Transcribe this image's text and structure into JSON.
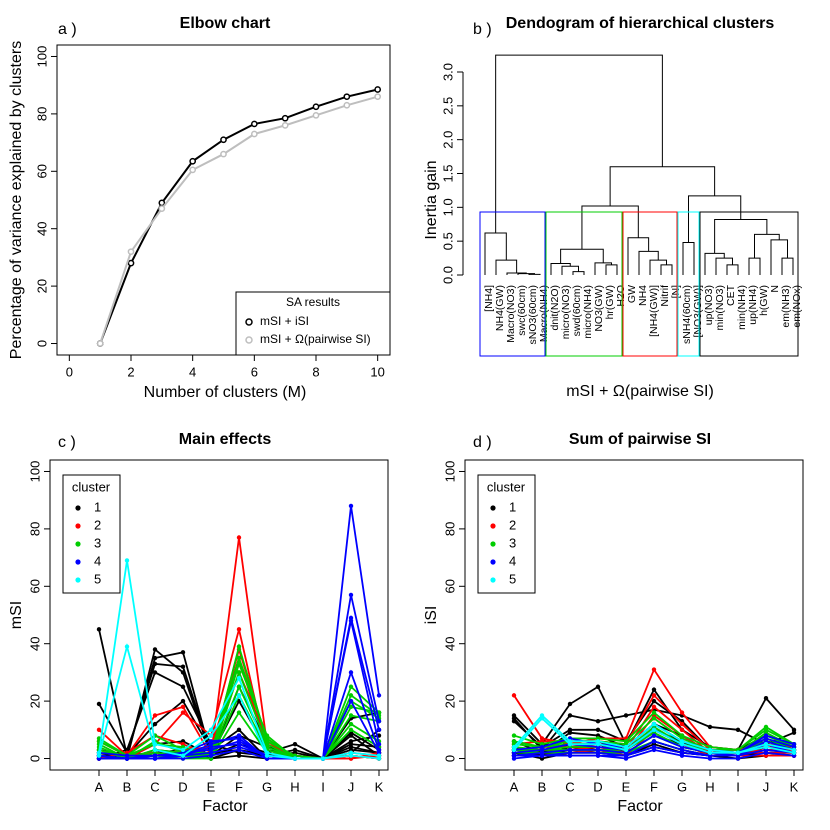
{
  "chart_data": [
    {
      "type": "line",
      "panel_label": "a )",
      "title": "Elbow chart",
      "x_label": "Number of clusters (M)",
      "y_label": "Percentage of variance explained by clusters",
      "x": [
        1,
        2,
        3,
        4,
        5,
        6,
        7,
        8,
        9,
        10
      ],
      "series": [
        {
          "name": "mSI + iSI",
          "color": "#000000",
          "values": [
            0,
            28,
            49,
            63.5,
            71,
            76.5,
            78.5,
            82.5,
            86,
            88.5
          ]
        },
        {
          "name": "mSI + Ω(pairwise SI)",
          "color": "#bebebe",
          "values": [
            0,
            32,
            47,
            60.5,
            66,
            73,
            76,
            79.5,
            83,
            86
          ]
        }
      ],
      "legend_title": "SA results",
      "legend_position": "bottom-right",
      "xlim": [
        -0.4,
        10.4
      ],
      "xticks": [
        0,
        2,
        4,
        6,
        8,
        10
      ],
      "ylim": [
        -4,
        104
      ],
      "yticks": [
        0,
        20,
        40,
        60,
        80,
        100
      ]
    },
    {
      "type": "dendrogram",
      "panel_label": "b )",
      "title": "Dendogram of hierarchical clusters",
      "x_label": "mSI + Ω(pairwise SI)",
      "y_label": "Inertia gain",
      "leaves": [
        "[NH4]",
        "NH4(GW)",
        "Macro(NO3)",
        "swc(60cm)",
        "sNO3(60cm)",
        "Macro(NH4)",
        "dnit(N2O)",
        "micro(NO3)",
        "swd(60cm)",
        "micro(NH4)",
        "NO3(GW)",
        "hr(GW)",
        "H2O",
        "GW",
        "NH4",
        "[NH4(GW)]",
        "Nitrif",
        "[N]",
        "sNH4(60cm)",
        "[NO3(GW)]",
        "up(NO3)",
        "min(NO3)",
        "CET",
        "min(NH4)",
        "up(NH4)",
        "h(GW)",
        "N",
        "em(NH3)",
        "em(NOx)"
      ],
      "merge": [
        [
          -5,
          -6
        ],
        [
          -4,
          1
        ],
        [
          -3,
          2
        ],
        [
          -2,
          3
        ],
        [
          -1,
          4
        ],
        [
          -9,
          -10
        ],
        [
          -8,
          6
        ],
        [
          -7,
          7
        ],
        [
          -12,
          -13
        ],
        [
          -11,
          9
        ],
        [
          8,
          10
        ],
        [
          -17,
          -18
        ],
        [
          -16,
          12
        ],
        [
          -15,
          13
        ],
        [
          -14,
          14
        ],
        [
          -19,
          -20
        ],
        [
          -23,
          -24
        ],
        [
          -22,
          17
        ],
        [
          -21,
          18
        ],
        [
          -25,
          -26
        ],
        [
          -28,
          -29
        ],
        [
          -27,
          21
        ],
        [
          20,
          22
        ],
        [
          19,
          23
        ],
        [
          16,
          24
        ],
        [
          11,
          15
        ],
        [
          26,
          25
        ],
        [
          5,
          27
        ]
      ],
      "height": [
        0.01,
        0.02,
        0.03,
        0.22,
        0.62,
        0.05,
        0.13,
        0.17,
        0.15,
        0.18,
        0.38,
        0.15,
        0.22,
        0.35,
        0.55,
        0.48,
        0.15,
        0.25,
        0.32,
        0.25,
        0.25,
        0.52,
        0.6,
        0.82,
        1.17,
        1.02,
        1.6,
        3.25
      ],
      "cluster_boxes": [
        {
          "color": "#0000ff",
          "first_leaf": 1,
          "last_leaf": 6
        },
        {
          "color": "#00cd00",
          "first_leaf": 7,
          "last_leaf": 13
        },
        {
          "color": "#ff0000",
          "first_leaf": 14,
          "last_leaf": 18
        },
        {
          "color": "#00ffff",
          "first_leaf": 19,
          "last_leaf": 20
        },
        {
          "color": "#000000",
          "first_leaf": 21,
          "last_leaf": 29
        }
      ],
      "ylim": [
        0,
        3
      ],
      "yticks": [
        {
          "value": 0,
          "label": "0.0"
        },
        {
          "value": 0.5,
          "label": "0.5"
        },
        {
          "value": 1,
          "label": "1.0"
        },
        {
          "value": 1.5,
          "label": "1.5"
        },
        {
          "value": 2,
          "label": "2.0"
        },
        {
          "value": 2.5,
          "label": "2.5"
        },
        {
          "value": 3,
          "label": "3.0"
        }
      ]
    },
    {
      "type": "multiline",
      "panel_label": "c )",
      "title": "Main effects",
      "x_label": "Factor",
      "y_label": "mSI",
      "categories": [
        "A",
        "B",
        "C",
        "D",
        "E",
        "F",
        "G",
        "H",
        "I",
        "J",
        "K"
      ],
      "legend_title": "cluster",
      "legend_position": "top-left",
      "ylim": [
        -4,
        104
      ],
      "yticks": [
        0,
        20,
        40,
        60,
        80,
        100
      ],
      "series": [
        {
          "name": "1",
          "color": "#000000",
          "lines": [
            [
              45,
              1,
              35,
              37,
              1,
              5,
              2,
              5,
              0,
              9,
              3
            ],
            [
              19,
              2,
              33,
              32,
              2,
              3,
              1,
              2,
              0,
              6,
              8
            ],
            [
              2,
              0,
              38,
              30,
              1,
              8,
              4,
              1,
              0,
              14,
              16
            ],
            [
              0,
              3,
              30,
              25,
              5,
              2,
              1,
              3,
              0,
              5,
              4
            ],
            [
              1,
              1,
              12,
              20,
              3,
              10,
              0,
              0,
              0,
              3,
              2
            ],
            [
              0,
              0,
              5,
              6,
              1,
              20,
              3,
              1,
              0,
              2,
              10
            ],
            [
              3,
              1,
              2,
              3,
              0,
              25,
              5,
              0,
              0,
              8,
              1
            ],
            [
              0,
              2,
              1,
              1,
              0,
              3,
              1,
              0,
              0,
              1,
              0
            ],
            [
              1,
              0,
              3,
              2,
              0,
              1,
              0,
              0,
              0,
              4,
              2
            ]
          ]
        },
        {
          "name": "2",
          "color": "#ff0000",
          "lines": [
            [
              10,
              1,
              15,
              18,
              1,
              77,
              5,
              1,
              0,
              1,
              0
            ],
            [
              3,
              0,
              5,
              16,
              8,
              45,
              2,
              0,
              0,
              0,
              2
            ],
            [
              6,
              1,
              2,
              1,
              2,
              38,
              6,
              0,
              0,
              1,
              0
            ],
            [
              1,
              0,
              1,
              3,
              4,
              35,
              3,
              0,
              0,
              2,
              1
            ],
            [
              0,
              2,
              8,
              5,
              1,
              30,
              7,
              0,
              0,
              0,
              1
            ]
          ]
        },
        {
          "name": "3",
          "color": "#00cd00",
          "lines": [
            [
              7,
              1,
              8,
              3,
              1,
              39,
              6,
              1,
              0,
              25,
              16
            ],
            [
              5,
              0,
              6,
              2,
              2,
              35,
              7,
              0,
              0,
              22,
              15
            ],
            [
              6,
              1,
              5,
              4,
              1,
              33,
              8,
              0,
              0,
              20,
              14
            ],
            [
              4,
              0,
              3,
              2,
              1,
              30,
              5,
              0,
              0,
              18,
              16
            ],
            [
              3,
              0,
              2,
              1,
              1,
              25,
              4,
              0,
              0,
              15,
              13
            ],
            [
              2,
              1,
              1,
              1,
              0,
              22,
              3,
              0,
              0,
              12,
              6
            ],
            [
              1,
              0,
              1,
              0,
              0,
              16,
              2,
              0,
              0,
              10,
              4
            ]
          ]
        },
        {
          "name": "4",
          "color": "#0000ff",
          "lines": [
            [
              1,
              0,
              1,
              2,
              3,
              6,
              1,
              0,
              0,
              88,
              22
            ],
            [
              1,
              0,
              0,
              1,
              5,
              8,
              0,
              0,
              0,
              57,
              13
            ],
            [
              0,
              0,
              1,
              1,
              4,
              5,
              1,
              0,
              0,
              49,
              10
            ],
            [
              2,
              1,
              1,
              2,
              6,
              7,
              0,
              0,
              0,
              48,
              5
            ],
            [
              1,
              0,
              0,
              1,
              2,
              4,
              1,
              0,
              0,
              30,
              3
            ],
            [
              0,
              0,
              0,
              0,
              1,
              3,
              0,
              0,
              0,
              20,
              2
            ]
          ]
        },
        {
          "name": "5",
          "color": "#00ffff",
          "lines": [
            [
              2,
              69,
              5,
              3,
              10,
              28,
              2,
              0,
              0,
              2,
              1
            ],
            [
              1,
              39,
              3,
              1,
              8,
              22,
              1,
              0,
              0,
              1,
              0
            ]
          ]
        }
      ]
    },
    {
      "type": "multiline",
      "panel_label": "d )",
      "title": "Sum of pairwise SI",
      "x_label": "Factor",
      "y_label": "iSI",
      "categories": [
        "A",
        "B",
        "C",
        "D",
        "E",
        "F",
        "G",
        "H",
        "I",
        "J",
        "K"
      ],
      "legend_title": "cluster",
      "legend_position": "top-left",
      "ylim": [
        -4,
        104
      ],
      "yticks": [
        0,
        20,
        40,
        60,
        80,
        100
      ],
      "series": [
        {
          "name": "1",
          "color": "#000000",
          "lines": [
            [
              15,
              5,
              19,
              25,
              5,
              24,
              10,
              4,
              3,
              21,
              10
            ],
            [
              14,
              3,
              15,
              13,
              15,
              17,
              15,
              11,
              10,
              5,
              9
            ],
            [
              13,
              4,
              10,
              10,
              6,
              20,
              13,
              3,
              3,
              8,
              5
            ],
            [
              6,
              2,
              9,
              8,
              4,
              12,
              8,
              2,
              2,
              6,
              4
            ],
            [
              4,
              1,
              6,
              6,
              3,
              10,
              6,
              1,
              1,
              4,
              3
            ],
            [
              3,
              2,
              5,
              5,
              2,
              8,
              5,
              2,
              1,
              3,
              2
            ],
            [
              2,
              1,
              4,
              3,
              1,
              6,
              3,
              1,
              1,
              2,
              2
            ],
            [
              1,
              1,
              3,
              2,
              1,
              5,
              2,
              1,
              1,
              2,
              1
            ],
            [
              2,
              0,
              2,
              2,
              1,
              4,
              2,
              1,
              0,
              1,
              1
            ]
          ]
        },
        {
          "name": "2",
          "color": "#ff0000",
          "lines": [
            [
              22,
              7,
              5,
              7,
              7,
              31,
              16,
              4,
              3,
              5,
              4
            ],
            [
              5,
              6,
              6,
              6,
              5,
              22,
              12,
              3,
              3,
              4,
              3
            ],
            [
              3,
              4,
              4,
              5,
              3,
              18,
              10,
              2,
              2,
              3,
              3
            ],
            [
              2,
              3,
              3,
              4,
              2,
              15,
              8,
              2,
              2,
              2,
              2
            ],
            [
              1,
              1,
              2,
              3,
              1,
              10,
              5,
              1,
              1,
              1,
              1
            ]
          ]
        },
        {
          "name": "3",
          "color": "#00cd00",
          "lines": [
            [
              8,
              5,
              7,
              7,
              6,
              16,
              8,
              4,
              3,
              11,
              5
            ],
            [
              6,
              4,
              6,
              6,
              5,
              14,
              7,
              3,
              3,
              10,
              5
            ],
            [
              5,
              4,
              5,
              5,
              4,
              12,
              6,
              3,
              2,
              9,
              4
            ],
            [
              4,
              3,
              4,
              4,
              3,
              11,
              5,
              3,
              2,
              8,
              4
            ],
            [
              3,
              3,
              3,
              3,
              3,
              9,
              4,
              2,
              2,
              7,
              3
            ],
            [
              3,
              2,
              3,
              3,
              2,
              8,
              4,
              2,
              2,
              6,
              3
            ],
            [
              2,
              2,
              2,
              2,
              2,
              6,
              3,
              1,
              1,
              5,
              2
            ]
          ]
        },
        {
          "name": "4",
          "color": "#0000ff",
          "lines": [
            [
              3,
              4,
              7,
              5,
              4,
              12,
              6,
              3,
              2,
              8,
              5
            ],
            [
              2,
              3,
              5,
              4,
              3,
              10,
              5,
              2,
              2,
              7,
              4
            ],
            [
              1,
              2,
              3,
              3,
              2,
              8,
              4,
              2,
              1,
              6,
              3
            ],
            [
              1,
              1,
              2,
              2,
              1,
              6,
              3,
              1,
              1,
              5,
              2
            ],
            [
              1,
              1,
              1,
              1,
              1,
              4,
              2,
              1,
              1,
              3,
              2
            ],
            [
              0,
              1,
              1,
              1,
              0,
              3,
              1,
              0,
              0,
              2,
              1
            ]
          ]
        },
        {
          "name": "5",
          "color": "#00ffff",
          "lines": [
            [
              4,
              15,
              6,
              6,
              4,
              12,
              6,
              3,
              2,
              5,
              3
            ],
            [
              3,
              14,
              5,
              5,
              3,
              10,
              5,
              2,
              2,
              4,
              2
            ]
          ]
        }
      ]
    }
  ]
}
